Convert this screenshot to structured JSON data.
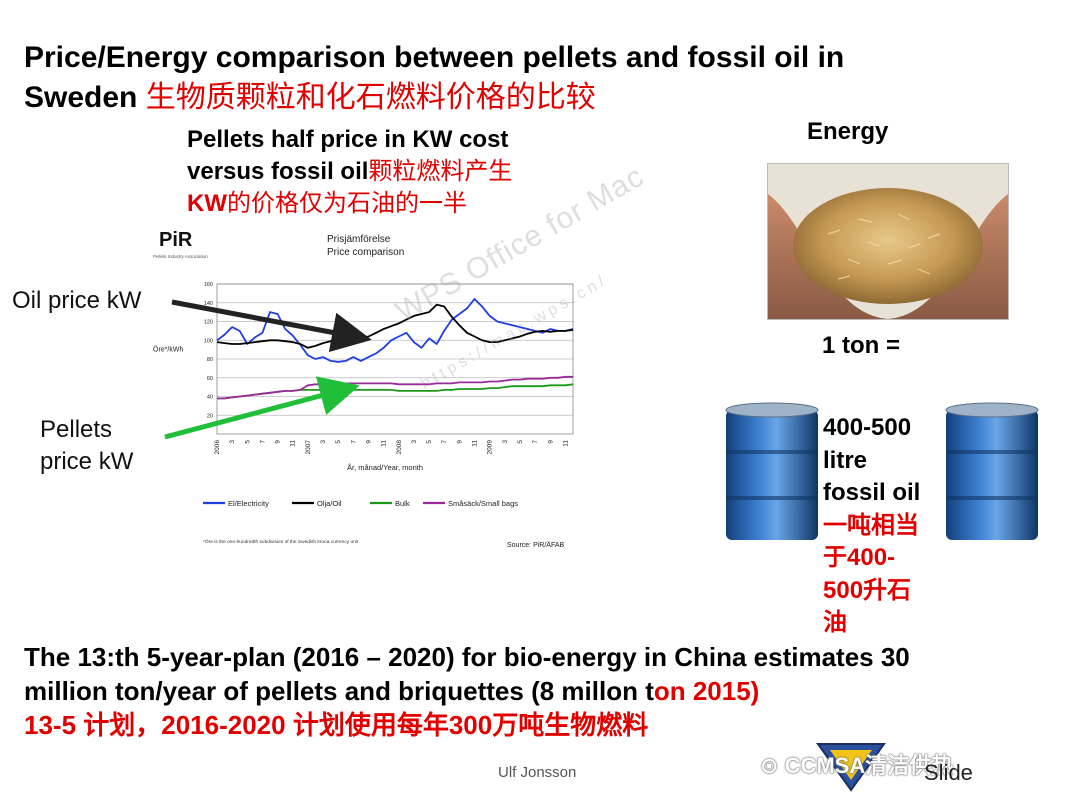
{
  "title": {
    "line1": "Price/Energy comparison between pellets and fossil oil in",
    "line2_en": "Sweden ",
    "line2_cn": "生物质颗粒和化石燃料价格的比较"
  },
  "subtitle": {
    "line1": "Pellets half price in KW cost",
    "line2_en": "versus fossil oil",
    "line2_cn": "颗粒燃料产生",
    "line3_en": "KW",
    "line3_cn": "的价格仅为石油的一半"
  },
  "chart_data": {
    "type": "line",
    "logo": "PiR",
    "logo_caption": "Pellets Industry Association",
    "title_sv": "Prisjämförelse",
    "title_en": "Price comparison",
    "ylabel": "Öre*/kWh",
    "xlabel": "År, månad/Year, month",
    "ylim": [
      0,
      160
    ],
    "yticks": [
      "20",
      "40",
      "60",
      "80",
      "100",
      "120",
      "140",
      "160"
    ],
    "year_labels": [
      "2006",
      "2007",
      "2008",
      "2009"
    ],
    "month_labels": [
      "1",
      "3",
      "5",
      "7",
      "9",
      "11"
    ],
    "x": [
      0,
      1,
      2,
      3,
      4,
      5,
      6,
      7,
      8,
      9,
      10,
      11,
      12,
      13,
      14,
      15,
      16,
      17,
      18,
      19,
      20,
      21,
      22,
      23,
      24,
      25,
      26,
      27,
      28,
      29,
      30,
      31,
      32,
      33,
      34,
      35,
      36,
      37,
      38,
      39,
      40,
      41,
      42,
      43,
      44,
      45,
      46,
      47
    ],
    "series": [
      {
        "name": "El/Electricity",
        "color": "#1f3fe0",
        "values": [
          100,
          106,
          114,
          110,
          96,
          103,
          108,
          130,
          128,
          112,
          105,
          95,
          84,
          80,
          82,
          78,
          77,
          78,
          82,
          78,
          82,
          86,
          92,
          100,
          104,
          108,
          98,
          92,
          102,
          96,
          110,
          122,
          128,
          134,
          144,
          136,
          126,
          120,
          118,
          116,
          114,
          112,
          110,
          108,
          112,
          110,
          110,
          112
        ]
      },
      {
        "name": "Olja/Oil",
        "color": "#000000",
        "values": [
          98,
          97,
          96,
          96,
          97,
          98,
          99,
          100,
          100,
          99,
          98,
          96,
          92,
          94,
          97,
          99,
          100,
          100,
          101,
          102,
          104,
          108,
          112,
          115,
          118,
          122,
          126,
          128,
          130,
          138,
          136,
          125,
          116,
          108,
          104,
          100,
          98,
          98,
          100,
          102,
          104,
          107,
          109,
          110,
          109,
          110,
          110,
          111
        ]
      },
      {
        "name": "Bulk",
        "color": "#1a9a1a",
        "values": [
          38,
          38,
          39,
          40,
          41,
          42,
          43,
          44,
          45,
          46,
          46,
          47,
          47,
          47,
          47,
          47,
          47,
          47,
          47,
          47,
          47,
          47,
          47,
          47,
          46,
          46,
          46,
          46,
          46,
          46,
          47,
          47,
          48,
          48,
          48,
          48,
          49,
          49,
          50,
          51,
          51,
          51,
          51,
          51,
          52,
          52,
          52,
          53
        ]
      },
      {
        "name": "Småsäck/Small bags",
        "color": "#9a2a9a",
        "values": [
          38,
          38,
          39,
          40,
          41,
          42,
          43,
          44,
          45,
          46,
          46,
          47,
          52,
          53,
          53,
          54,
          54,
          54,
          54,
          54,
          54,
          54,
          54,
          54,
          53,
          53,
          53,
          53,
          53,
          54,
          54,
          54,
          55,
          55,
          55,
          55,
          56,
          56,
          57,
          58,
          58,
          59,
          59,
          59,
          60,
          60,
          61,
          61
        ]
      }
    ],
    "footnote": "*Öre is the one-hundredth subdivision of the Swedish krona currency unit",
    "source": "Source: PiR/ÄFAB"
  },
  "labels": {
    "oil": "Oil price kW",
    "pellets_line1": "Pellets",
    "pellets_line2": "price kW"
  },
  "energy": {
    "heading": "Energy",
    "ton": "1 ton =",
    "line1": "400-500",
    "line2": "litre",
    "line3": "fossil oil",
    "cn1": "一吨相当",
    "cn2": "于400-",
    "cn3": "500升石",
    "cn4": "油"
  },
  "bottom": {
    "line1": "The 13:th 5-year-plan (2016 – 2020) for bio-energy in China estimates 30",
    "line2_a": "million ton/year of pellets and briquettes (8 millon t",
    "line2_b": "on 2015)",
    "line3": "13-5 计划，2016-2020 计划使用每年300万吨生物燃料"
  },
  "footer": {
    "author": "Ulf Jonsson",
    "wechat": "CCMSA清洁供热",
    "slide": "Slide"
  },
  "watermark": {
    "line1": "WPS Office for Mac",
    "line2": "https://mac.wps.cn/"
  },
  "colors": {
    "accent_red": "#e00000",
    "arrow_oil": "#222222",
    "arrow_pellets": "#1fbf3a",
    "barrel_blue": "#1e5aa8"
  }
}
